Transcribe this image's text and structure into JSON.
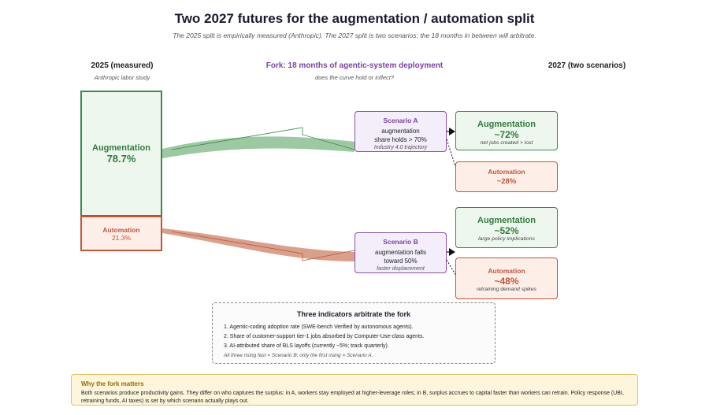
{
  "title": "Two 2027 futures for the augmentation / automation split",
  "subtitle": "The 2025 split is empirically measured (Anthropic). The 2027 split is two scenarios; the 18 months in between will arbitrate.",
  "left_header": {
    "title": "2025 (measured)",
    "sub": "Anthropic labor study"
  },
  "mid_header": {
    "title": "Fork: 18 months of agentic-system deployment",
    "sub": "does the curve hold or inflect?"
  },
  "right_header": {
    "title": "2027 (two scenarios)"
  },
  "current": {
    "augmentation": {
      "label": "Augmentation",
      "value": "78.7%",
      "share": 0.787
    },
    "automation": {
      "label": "Automation",
      "value": "21.3%",
      "share": 0.213
    }
  },
  "scenario_a": {
    "title": "Scenario A",
    "line1": "augmentation",
    "line2": "share holds > 70%",
    "note": "Industry 4.0 trajectory",
    "aug": {
      "label": "Augmentation",
      "value": "~72%",
      "note": "net jobs created > lost"
    },
    "aut": {
      "label": "Automation",
      "value": "~28%"
    }
  },
  "scenario_b": {
    "title": "Scenario B",
    "line1": "augmentation falls",
    "line2": "toward 50%",
    "note": "faster displacement",
    "aug": {
      "label": "Augmentation",
      "value": "~52%",
      "note": "large policy implications"
    },
    "aut": {
      "label": "Automation",
      "value": "~48%",
      "note": "retraining demand spikes"
    }
  },
  "indicators": {
    "title": "Three indicators arbitrate the fork",
    "items": [
      "1. Agentic-coding adoption rate (SWE-bench Verified by autonomous agents).",
      "2. Share of customer-support tier-1 jobs absorbed by Computer-Use-class agents.",
      "3. AI-attributed share of BLS layoffs (currently ~5%; track quarterly)."
    ],
    "note": "All three rising fast = Scenario B; only the first rising = Scenario A."
  },
  "why": {
    "title": "Why the fork matters",
    "body": "Both scenarios produce productivity gains. They differ on who captures the surplus: in A, workers stay employed at higher-leverage roles; in B, surplus accrues to capital faster than workers can retrain. Policy response (UBI, retraining funds, AI taxes) is set by which scenario actually plays out."
  },
  "colors": {
    "augmentation": "#2f7d3b",
    "automation": "#c0563a",
    "scenario": "#7b3fa6"
  }
}
